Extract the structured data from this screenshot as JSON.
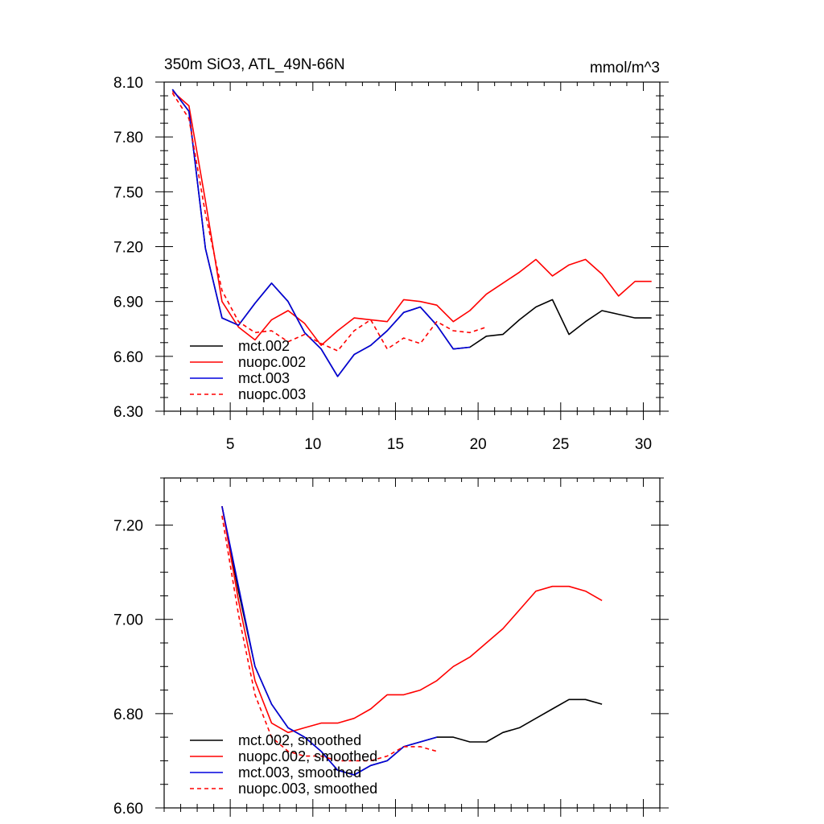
{
  "chart_data": [
    {
      "type": "line",
      "title": "350m SiO3, ATL_49N-66N",
      "units": "mmol/m^3",
      "xlabel": "",
      "ylabel": "",
      "xlim": [
        1,
        31
      ],
      "ylim": [
        6.3,
        8.1
      ],
      "xticks": [
        5,
        10,
        15,
        20,
        25,
        30
      ],
      "xtick_labels": [
        "5",
        "10",
        "15",
        "20",
        "25",
        "30"
      ],
      "yticks": [
        6.3,
        6.6,
        6.9,
        7.2,
        7.5,
        7.8,
        8.1
      ],
      "ytick_labels": [
        "6.30",
        "6.60",
        "6.90",
        "7.20",
        "7.50",
        "7.80",
        "8.10"
      ],
      "legend_position": "bottom-left",
      "series": [
        {
          "name": "mct.002",
          "color": "#000000",
          "dash": "solid",
          "x": [
            1.5,
            2.5,
            3.5,
            4.5,
            5.5,
            6.5,
            7.5,
            8.5,
            9.5,
            10.5,
            11.5,
            12.5,
            13.5,
            14.5,
            15.5,
            16.5,
            17.5,
            18.5,
            19.5,
            20.5,
            21.5,
            22.5,
            23.5,
            24.5,
            25.5,
            26.5,
            27.5,
            28.5,
            29.5,
            30.5
          ],
          "values": [
            8.06,
            7.94,
            7.19,
            6.81,
            6.77,
            6.89,
            7.0,
            6.9,
            6.73,
            6.64,
            6.49,
            6.61,
            6.66,
            6.74,
            6.84,
            6.87,
            6.77,
            6.64,
            6.65,
            6.71,
            6.72,
            6.8,
            6.87,
            6.91,
            6.72,
            6.79,
            6.85,
            6.83,
            6.81,
            6.81
          ]
        },
        {
          "name": "nuopc.002",
          "color": "#ff0000",
          "dash": "solid",
          "x": [
            1.5,
            2.5,
            3.5,
            4.5,
            5.5,
            6.5,
            7.5,
            8.5,
            9.5,
            10.5,
            11.5,
            12.5,
            13.5,
            14.5,
            15.5,
            16.5,
            17.5,
            18.5,
            19.5,
            20.5,
            21.5,
            22.5,
            23.5,
            24.5,
            25.5,
            26.5,
            27.5,
            28.5,
            29.5,
            30.5
          ],
          "values": [
            8.05,
            7.97,
            7.45,
            6.9,
            6.76,
            6.69,
            6.8,
            6.85,
            6.78,
            6.66,
            6.74,
            6.81,
            6.8,
            6.79,
            6.91,
            6.9,
            6.88,
            6.79,
            6.85,
            6.94,
            7.0,
            7.06,
            7.13,
            7.04,
            7.1,
            7.13,
            7.05,
            6.93,
            7.01,
            7.01
          ]
        },
        {
          "name": "mct.003",
          "color": "#0000dd",
          "dash": "solid",
          "x": [
            1.5,
            2.5,
            3.5,
            4.5,
            5.5,
            6.5,
            7.5,
            8.5,
            9.5,
            10.5,
            11.5,
            12.5,
            13.5,
            14.5,
            15.5,
            16.5,
            17.5,
            18.5,
            19.5
          ],
          "values": [
            8.06,
            7.94,
            7.19,
            6.81,
            6.77,
            6.89,
            7.0,
            6.9,
            6.73,
            6.64,
            6.49,
            6.61,
            6.66,
            6.74,
            6.84,
            6.87,
            6.77,
            6.64,
            6.65
          ]
        },
        {
          "name": "nuopc.003",
          "color": "#ff0000",
          "dash": "dashed",
          "x": [
            1.5,
            2.5,
            3.5,
            4.5,
            5.5,
            6.5,
            7.5,
            8.5,
            9.5,
            10.5,
            11.5,
            12.5,
            13.5,
            14.5,
            15.5,
            16.5,
            17.5,
            18.5,
            19.5,
            20.5
          ],
          "values": [
            8.04,
            7.9,
            7.38,
            6.96,
            6.79,
            6.73,
            6.74,
            6.68,
            6.72,
            6.67,
            6.63,
            6.74,
            6.8,
            6.64,
            6.7,
            6.67,
            6.79,
            6.74,
            6.73,
            6.76
          ]
        }
      ]
    },
    {
      "type": "line",
      "title": "",
      "xlabel": "",
      "ylabel": "",
      "xlim": [
        1,
        31
      ],
      "ylim": [
        6.6,
        7.3
      ],
      "xticks": [
        5,
        10,
        15,
        20,
        25,
        30
      ],
      "xtick_labels": [],
      "yticks": [
        6.6,
        6.8,
        7.0,
        7.2
      ],
      "ytick_labels": [
        "6.60",
        "6.80",
        "7.00",
        "7.20"
      ],
      "legend_position": "bottom-left",
      "series": [
        {
          "name": "mct.002, smoothed",
          "color": "#000000",
          "dash": "solid",
          "x": [
            4.5,
            5.5,
            6.5,
            7.5,
            8.5,
            9.5,
            10.5,
            11.5,
            12.5,
            13.5,
            14.5,
            15.5,
            16.5,
            17.5,
            18.5,
            19.5,
            20.5,
            21.5,
            22.5,
            23.5,
            24.5,
            25.5,
            26.5,
            27.5
          ],
          "values": [
            7.24,
            7.06,
            6.9,
            6.82,
            6.77,
            6.75,
            6.72,
            6.68,
            6.67,
            6.69,
            6.7,
            6.73,
            6.74,
            6.75,
            6.75,
            6.74,
            6.74,
            6.76,
            6.77,
            6.79,
            6.81,
            6.83,
            6.83,
            6.82
          ]
        },
        {
          "name": "nuopc.002, smoothed",
          "color": "#ff0000",
          "dash": "solid",
          "x": [
            4.5,
            5.5,
            6.5,
            7.5,
            8.5,
            9.5,
            10.5,
            11.5,
            12.5,
            13.5,
            14.5,
            15.5,
            16.5,
            17.5,
            18.5,
            19.5,
            20.5,
            21.5,
            22.5,
            23.5,
            24.5,
            25.5,
            26.5,
            27.5
          ],
          "values": [
            7.24,
            7.04,
            6.87,
            6.78,
            6.76,
            6.77,
            6.78,
            6.78,
            6.79,
            6.81,
            6.84,
            6.84,
            6.85,
            6.87,
            6.9,
            6.92,
            6.95,
            6.98,
            7.02,
            7.06,
            7.07,
            7.07,
            7.06,
            7.04
          ]
        },
        {
          "name": "mct.003, smoothed",
          "color": "#0000dd",
          "dash": "solid",
          "x": [
            4.5,
            5.5,
            6.5,
            7.5,
            8.5,
            9.5,
            10.5,
            11.5,
            12.5,
            13.5,
            14.5,
            15.5,
            16.5,
            17.5
          ],
          "values": [
            7.24,
            7.07,
            6.9,
            6.82,
            6.77,
            6.75,
            6.72,
            6.68,
            6.67,
            6.69,
            6.7,
            6.73,
            6.74,
            6.75
          ]
        },
        {
          "name": "nuopc.003, smoothed",
          "color": "#ff0000",
          "dash": "dashed",
          "x": [
            4.5,
            5.5,
            6.5,
            7.5,
            8.5,
            9.5,
            10.5,
            11.5,
            12.5,
            13.5,
            14.5,
            15.5,
            16.5,
            17.5
          ],
          "values": [
            7.22,
            7.01,
            6.84,
            6.75,
            6.72,
            6.71,
            6.71,
            6.7,
            6.7,
            6.7,
            6.71,
            6.73,
            6.73,
            6.72
          ]
        }
      ]
    }
  ]
}
